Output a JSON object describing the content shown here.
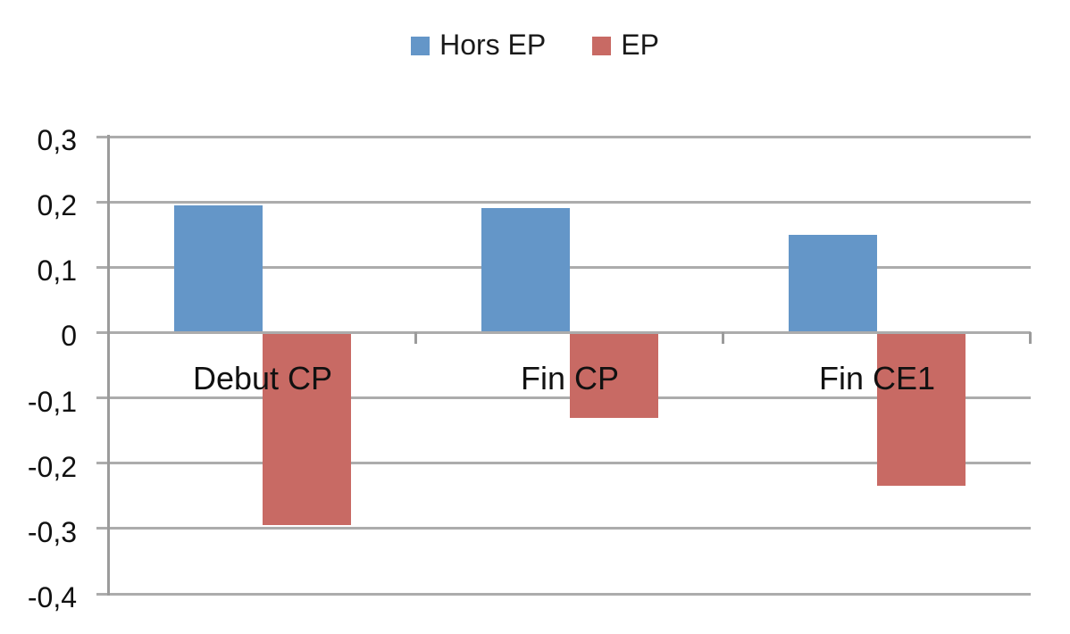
{
  "page": {
    "background": "#FFFFFF"
  },
  "legend": {
    "items": [
      {
        "label": "Hors EP",
        "color": "#6496C8"
      },
      {
        "label": "EP",
        "color": "#C86A64"
      }
    ]
  },
  "chart_data": {
    "type": "bar",
    "title": "",
    "categories": [
      "Debut CP",
      "Fin CP",
      "Fin CE1"
    ],
    "series": [
      {
        "name": "Hors EP",
        "color": "#6496C8",
        "values": [
          0.195,
          0.19,
          0.15
        ]
      },
      {
        "name": "EP",
        "color": "#C86A64",
        "values": [
          -0.295,
          -0.13,
          -0.235
        ]
      }
    ],
    "ylim": [
      -0.4,
      0.3
    ],
    "ytick_step": 0.1,
    "ytick_labels": [
      "0,3",
      "0,2",
      "0,1",
      "0",
      "-0,1",
      "-0,2",
      "-0,3",
      "-0,4"
    ],
    "decimal_separator": ",",
    "grid": true,
    "legend_position": "top",
    "gridline_color": "#ACACAC",
    "axis_color": "#9B9B9B",
    "text_color": "#111111"
  }
}
